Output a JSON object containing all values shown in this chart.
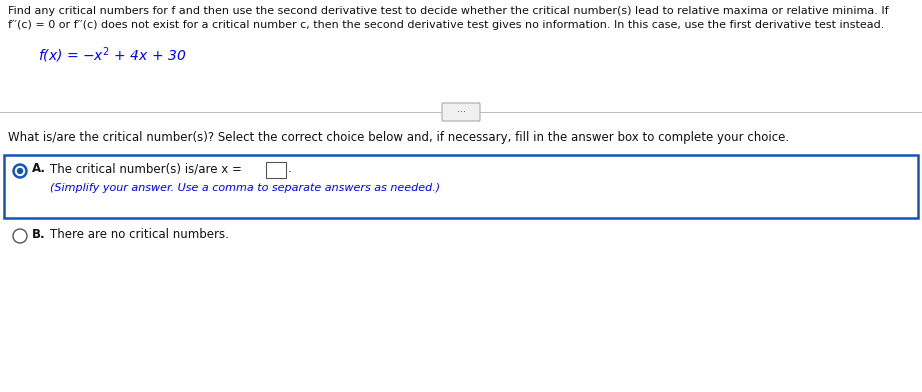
{
  "bg_color": "#ffffff",
  "blue": "#0000ff",
  "dark": "#111111",
  "mid_gray": "#888888",
  "border_blue": "#1155bb",
  "para1_line1": "Find any critical numbers for f and then use the second derivative test to decide whether the critical number(s) lead to relative maxima or relative minima. If",
  "para1_line2": "f′′(c) = 0 or f′′(c) does not exist for a critical number c, then the second derivative test gives no information. In this case, use the first derivative test instead.",
  "question": "What is/are the critical number(s)? Select the correct choice below and, if necessary, fill in the answer box to complete your choice.",
  "choice_a_main": "The critical number(s) is/are x =",
  "choice_a_sub": "(Simplify your answer. Use a comma to separate answers as needed.)",
  "choice_b": "There are no critical numbers.",
  "fs_para": 8.0,
  "fs_func": 10.0,
  "fs_question": 8.5,
  "fs_choice": 8.5
}
